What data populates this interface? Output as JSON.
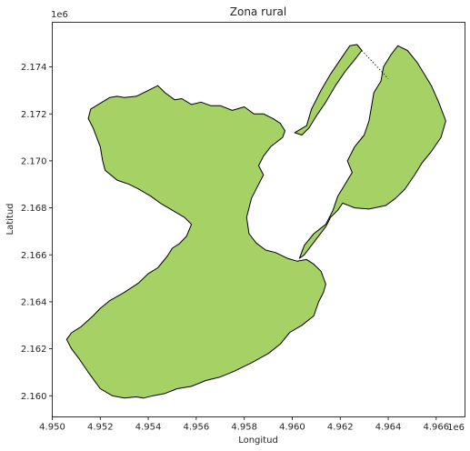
{
  "title": "Zona rural",
  "chart_data": {
    "type": "map",
    "title": "Zona rural",
    "xlabel": "Longitud",
    "ylabel": "Latitud",
    "x_offset_label": "1e6",
    "y_offset_label": "1e6",
    "xlim": [
      4.95,
      4.9672
    ],
    "ylim": [
      2.1591,
      2.1759
    ],
    "x_ticks": [
      4.95,
      4.952,
      4.954,
      4.956,
      4.958,
      4.96,
      4.962,
      4.964,
      4.966
    ],
    "x_tick_labels": [
      "4.950",
      "4.952",
      "4.954",
      "4.956",
      "4.958",
      "4.960",
      "4.962",
      "4.964",
      "4.966"
    ],
    "y_ticks": [
      2.16,
      2.162,
      2.164,
      2.166,
      2.168,
      2.17,
      2.172,
      2.174
    ],
    "y_tick_labels": [
      "2.160",
      "2.162",
      "2.164",
      "2.166",
      "2.168",
      "2.170",
      "2.172",
      "2.174"
    ],
    "fill_color": "#a6d265",
    "edge_color": "#000000",
    "grid": false,
    "polygons": [
      {
        "name": "main-region",
        "coords": [
          [
            4.9506,
            2.1624
          ],
          [
            4.9508,
            2.16268
          ],
          [
            4.9512,
            2.16294
          ],
          [
            4.9517,
            2.1634
          ],
          [
            4.952,
            2.16372
          ],
          [
            4.9524,
            2.16405
          ],
          [
            4.953,
            2.1644
          ],
          [
            4.9536,
            2.1648
          ],
          [
            4.954,
            2.1652
          ],
          [
            4.9544,
            2.16545
          ],
          [
            4.9548,
            2.16595
          ],
          [
            4.955,
            2.16628
          ],
          [
            4.9553,
            2.16648
          ],
          [
            4.9556,
            2.1668
          ],
          [
            4.9558,
            2.1673
          ],
          [
            4.9555,
            2.1676
          ],
          [
            4.955,
            2.1679
          ],
          [
            4.9545,
            2.1682
          ],
          [
            4.9541,
            2.1685
          ],
          [
            4.9536,
            2.1688
          ],
          [
            4.9532,
            2.169
          ],
          [
            4.9527,
            2.16918
          ],
          [
            4.9522,
            2.1696
          ],
          [
            4.9521,
            2.17
          ],
          [
            4.952,
            2.1706
          ],
          [
            4.9517,
            2.1714
          ],
          [
            4.9515,
            2.1718
          ],
          [
            4.9516,
            2.1722
          ],
          [
            4.952,
            2.17245
          ],
          [
            4.9524,
            2.1727
          ],
          [
            4.9527,
            2.17275
          ],
          [
            4.953,
            2.1727
          ],
          [
            4.9535,
            2.17275
          ],
          [
            4.954,
            2.173
          ],
          [
            4.9544,
            2.1732
          ],
          [
            4.9547,
            2.1729
          ],
          [
            4.9551,
            2.1726
          ],
          [
            4.9554,
            2.17265
          ],
          [
            4.9558,
            2.1724
          ],
          [
            4.9562,
            2.1725
          ],
          [
            4.9566,
            2.17235
          ],
          [
            4.957,
            2.17235
          ],
          [
            4.9575,
            2.17215
          ],
          [
            4.958,
            2.1723
          ],
          [
            4.9584,
            2.172
          ],
          [
            4.9588,
            2.172
          ],
          [
            4.9592,
            2.1718
          ],
          [
            4.9595,
            2.1716
          ],
          [
            4.9597,
            2.17128
          ],
          [
            4.9596,
            2.171
          ],
          [
            4.9591,
            2.1706
          ],
          [
            4.9588,
            2.1702
          ],
          [
            4.9586,
            2.1698
          ],
          [
            4.9588,
            2.1694
          ],
          [
            4.9586,
            2.169
          ],
          [
            4.9583,
            2.1684
          ],
          [
            4.9581,
            2.1676
          ],
          [
            4.9582,
            2.1669
          ],
          [
            4.9585,
            2.1665
          ],
          [
            4.9589,
            2.1662
          ],
          [
            4.9593,
            2.1661
          ],
          [
            4.9598,
            2.16585
          ],
          [
            4.9602,
            2.16573
          ],
          [
            4.9606,
            2.1658
          ],
          [
            4.9609,
            2.1656
          ],
          [
            4.9612,
            2.1653
          ],
          [
            4.9614,
            2.16475
          ],
          [
            4.9613,
            2.1644
          ],
          [
            4.9611,
            2.164
          ],
          [
            4.9609,
            2.1634
          ],
          [
            4.9604,
            2.163
          ],
          [
            4.9599,
            2.1627
          ],
          [
            4.9595,
            2.1622
          ],
          [
            4.959,
            2.1618
          ],
          [
            4.9583,
            2.1614
          ],
          [
            4.9576,
            2.16105
          ],
          [
            4.957,
            2.1608
          ],
          [
            4.9564,
            2.16065
          ],
          [
            4.9558,
            2.1604
          ],
          [
            4.9552,
            2.1603
          ],
          [
            4.9547,
            2.1601
          ],
          [
            4.9542,
            2.16
          ],
          [
            4.9538,
            2.1599
          ],
          [
            4.9535,
            2.15995
          ],
          [
            4.953,
            2.1599
          ],
          [
            4.9525,
            2.16
          ],
          [
            4.952,
            2.1603
          ],
          [
            4.9515,
            2.161
          ],
          [
            4.9511,
            2.1616
          ],
          [
            4.9508,
            2.162
          ]
        ]
      },
      {
        "name": "east-region",
        "coords": [
          [
            4.9603,
            2.16585
          ],
          [
            4.9605,
            2.1664
          ],
          [
            4.9609,
            2.1669
          ],
          [
            4.9614,
            2.1673
          ],
          [
            4.9617,
            2.1679
          ],
          [
            4.9619,
            2.1685
          ],
          [
            4.9622,
            2.169
          ],
          [
            4.9625,
            2.1695
          ],
          [
            4.9623,
            2.17
          ],
          [
            4.9626,
            2.1706
          ],
          [
            4.963,
            2.1711
          ],
          [
            4.9632,
            2.1717
          ],
          [
            4.9633,
            2.1723
          ],
          [
            4.9634,
            2.1729
          ],
          [
            4.9637,
            2.1734
          ],
          [
            4.9638,
            2.174
          ],
          [
            4.9641,
            2.1745
          ],
          [
            4.9644,
            2.1749
          ],
          [
            4.9648,
            2.1747
          ],
          [
            4.9652,
            2.1742
          ],
          [
            4.9655,
            2.1737
          ],
          [
            4.9658,
            2.1732
          ],
          [
            4.9661,
            2.1725
          ],
          [
            4.9664,
            2.1717
          ],
          [
            4.9662,
            2.171
          ],
          [
            4.9658,
            2.1704
          ],
          [
            4.9654,
            2.1699
          ],
          [
            4.9651,
            2.1694
          ],
          [
            4.9647,
            2.1688
          ],
          [
            4.9643,
            2.1684
          ],
          [
            4.9639,
            2.1681
          ],
          [
            4.9632,
            2.16795
          ],
          [
            4.9626,
            2.168
          ],
          [
            4.9621,
            2.1682
          ],
          [
            4.9619,
            2.1679
          ],
          [
            4.9616,
            2.1676
          ],
          [
            4.9614,
            2.1672
          ],
          [
            4.9611,
            2.1668
          ],
          [
            4.9608,
            2.1664
          ],
          [
            4.9605,
            2.166
          ]
        ]
      },
      {
        "name": "northwest-arm",
        "coords": [
          [
            4.9601,
            2.1712
          ],
          [
            4.9606,
            2.1715
          ],
          [
            4.9608,
            2.1722
          ],
          [
            4.9612,
            2.173
          ],
          [
            4.9616,
            2.1737
          ],
          [
            4.962,
            2.1743
          ],
          [
            4.9624,
            2.1749
          ],
          [
            4.9627,
            2.17495
          ],
          [
            4.9629,
            2.1747
          ],
          [
            4.9626,
            2.1743
          ],
          [
            4.9622,
            2.1738
          ],
          [
            4.9618,
            2.1732
          ],
          [
            4.9614,
            2.1725
          ],
          [
            4.961,
            2.1719
          ],
          [
            4.9607,
            2.1714
          ],
          [
            4.9604,
            2.1711
          ]
        ]
      }
    ],
    "dashed_connector": [
      [
        4.9629,
        2.1747
      ],
      [
        4.964,
        2.1735
      ]
    ]
  }
}
